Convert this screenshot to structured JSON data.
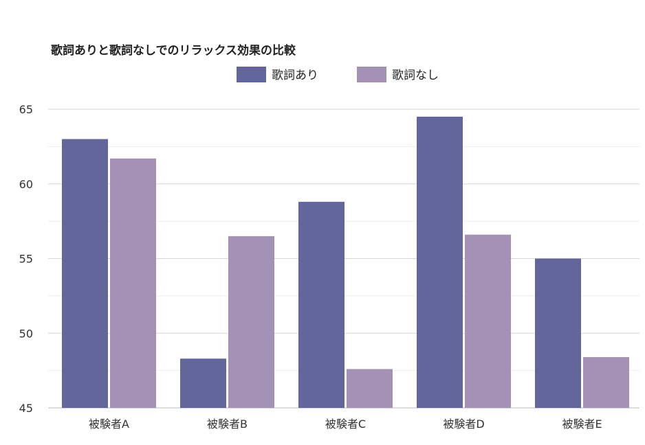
{
  "chart_data": {
    "type": "bar",
    "title": "歌詞ありと歌詞なしでのリラックス効果の比較",
    "xlabel": "",
    "ylabel": "",
    "categories": [
      "被験者A",
      "被験者B",
      "被験者C",
      "被験者D",
      "被験者E"
    ],
    "series": [
      {
        "name": "歌詞あり",
        "color": "#63669a",
        "values": [
          63.0,
          48.3,
          58.8,
          64.5,
          55.0
        ]
      },
      {
        "name": "歌詞なし",
        "color": "#a391b6",
        "values": [
          61.7,
          56.5,
          47.6,
          56.6,
          48.4
        ]
      }
    ],
    "ylim": [
      45,
      65
    ],
    "yticks": [
      45,
      50,
      55,
      60,
      65
    ],
    "grid": true,
    "legend": "top-center"
  }
}
